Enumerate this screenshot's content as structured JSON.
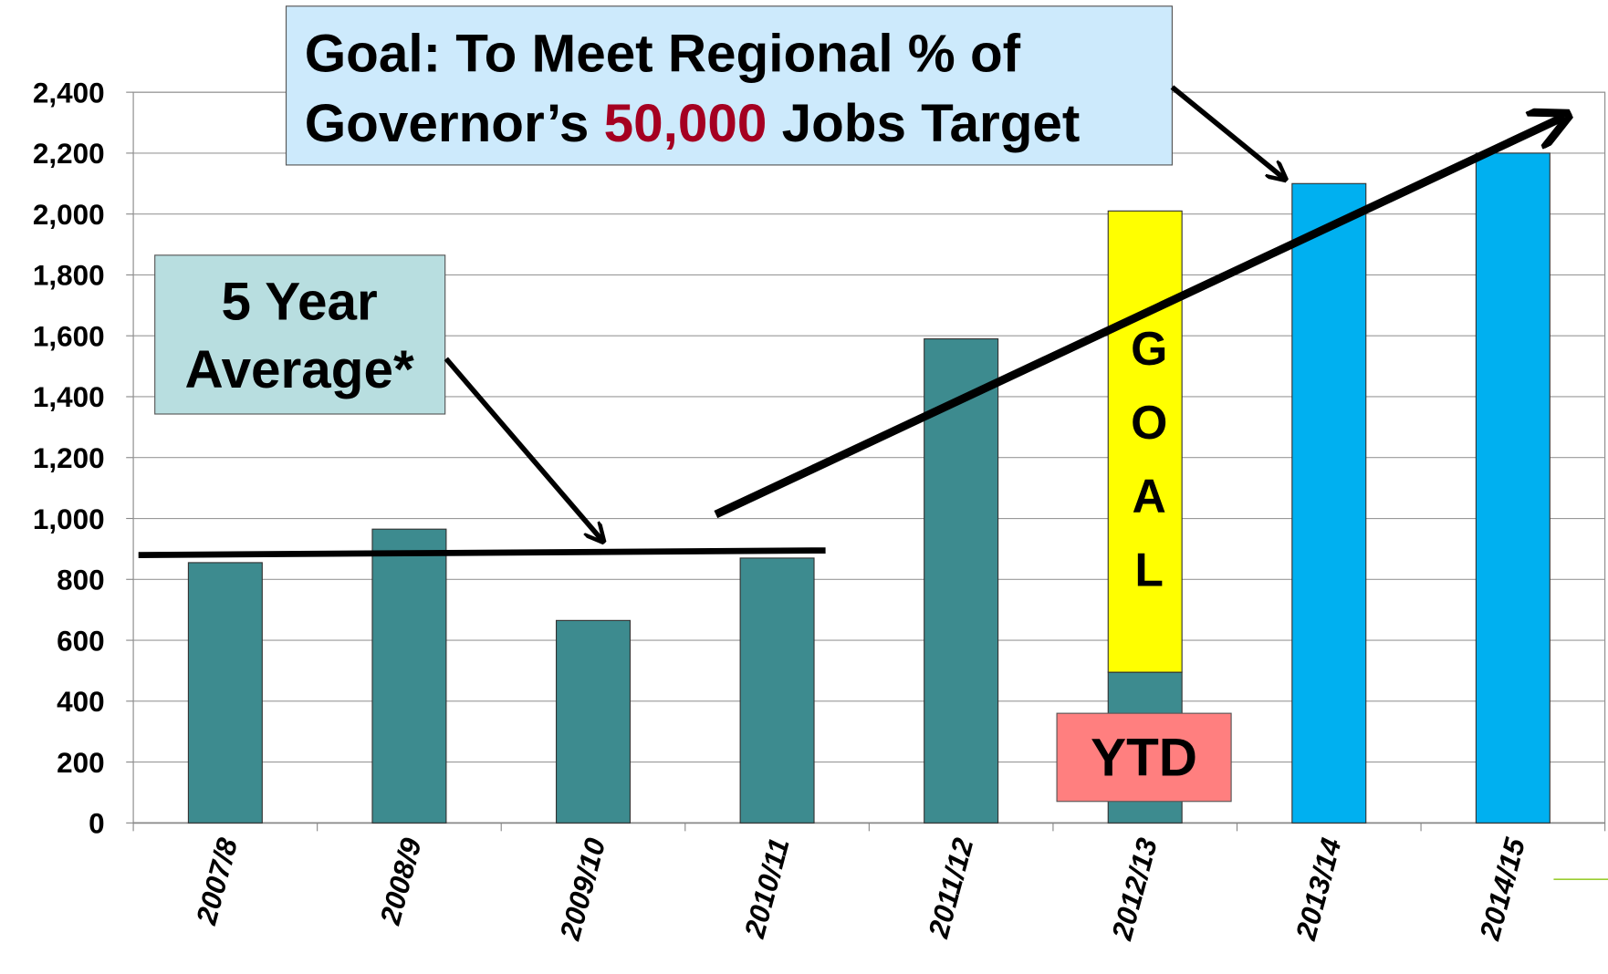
{
  "chart_data": {
    "type": "bar",
    "categories": [
      "2007/8",
      "2008/9",
      "2009/10",
      "2010/11",
      "2011/12",
      "2012/13",
      "2013/14",
      "2014/15"
    ],
    "series": [
      {
        "values": [
          855,
          965,
          665,
          870,
          1590,
          495,
          2100,
          2200
        ],
        "colors": [
          "#3d8b8f",
          "#3d8b8f",
          "#3d8b8f",
          "#3d8b8f",
          "#3d8b8f",
          "#3d8b8f",
          "#00b0f0",
          "#00b0f0"
        ]
      },
      {
        "name": "GOAL",
        "color": "#ffff00",
        "values": [
          null,
          null,
          null,
          null,
          null,
          1515,
          null,
          null
        ]
      }
    ],
    "ylim": [
      0,
      2400
    ],
    "yticks": [
      0,
      200,
      400,
      600,
      800,
      {
        "value": 1000,
        "label": "1,000"
      },
      {
        "value": 1200,
        "label": "1,200"
      },
      {
        "value": 1400,
        "label": "1,400"
      },
      {
        "value": 1600,
        "label": "1,600"
      },
      {
        "value": 1800,
        "label": "1,800"
      },
      {
        "value": 2000,
        "label": "2,000"
      },
      {
        "value": 2200,
        "label": "2,200"
      },
      {
        "value": 2400,
        "label": "2,400"
      }
    ],
    "grid": true,
    "average_line": {
      "label_lines": [
        "5 Year",
        "Average*"
      ],
      "values": [
        880,
        895
      ]
    },
    "ytd_label": "YTD",
    "goal_box": {
      "line1": "Goal: To Meet Regional % of",
      "line2_start": "Governor’s ",
      "line2_highlight": "50,000",
      "line2_end": " Jobs Target"
    }
  }
}
